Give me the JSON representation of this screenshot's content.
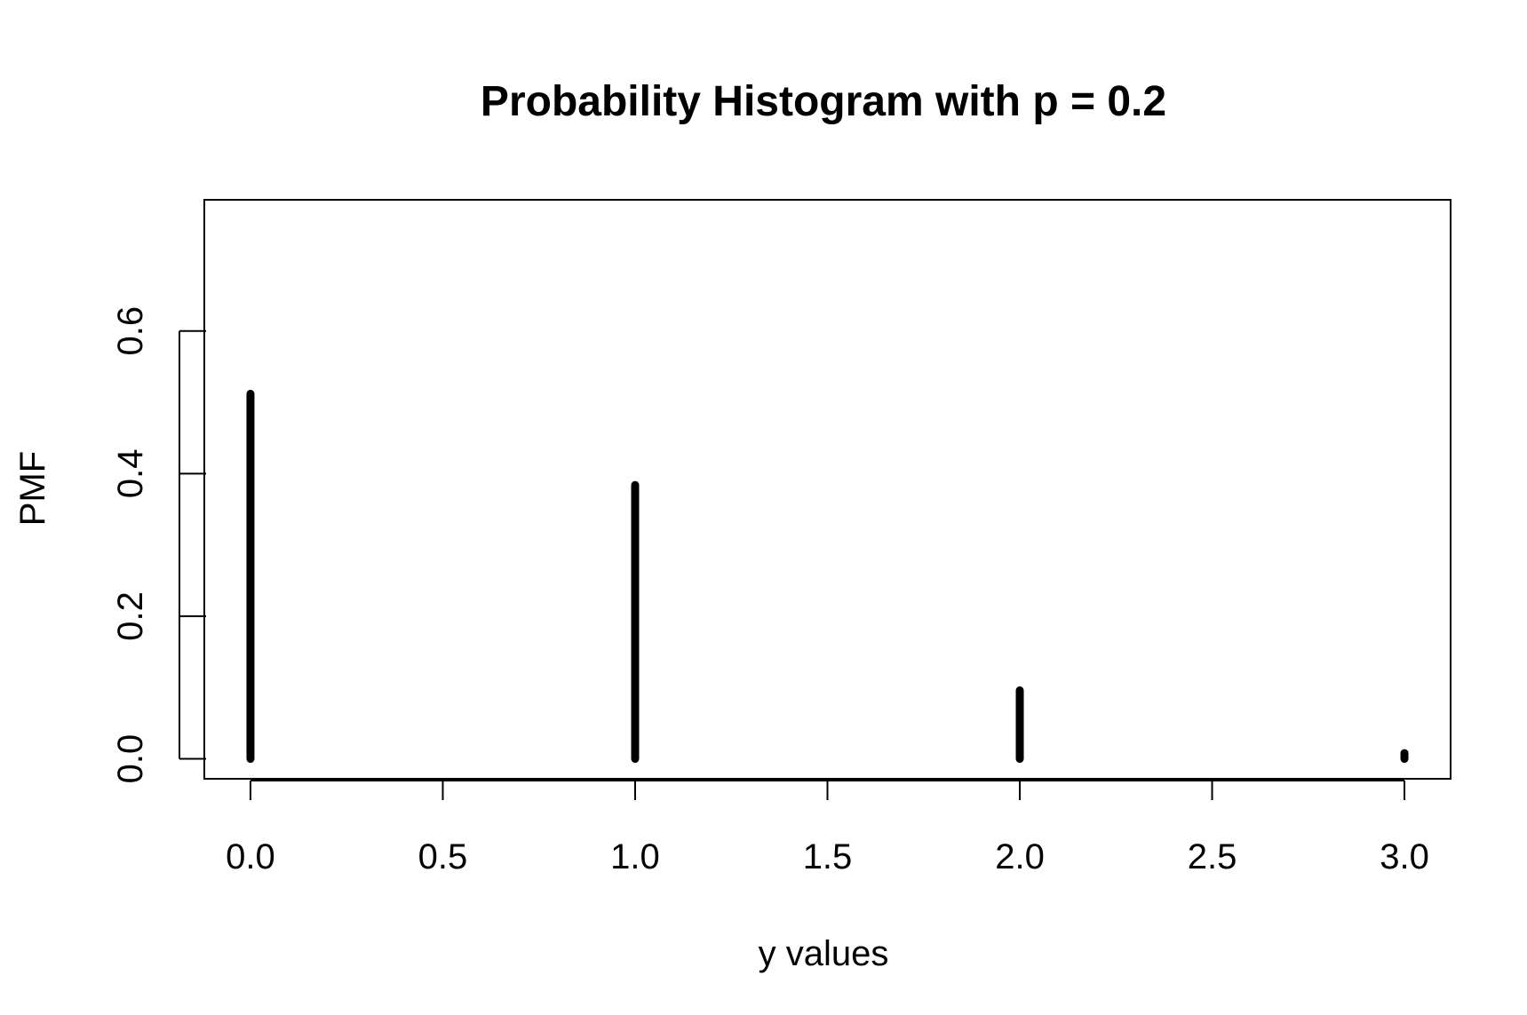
{
  "chart_data": {
    "type": "bar",
    "title": "Probability Histogram with p = 0.2",
    "xlabel": "y values",
    "ylabel": "PMF",
    "x": [
      0,
      1,
      2,
      3
    ],
    "values": [
      0.512,
      0.384,
      0.096,
      0.008
    ],
    "xlim": [
      -0.12,
      3.12
    ],
    "ylim": [
      -0.028,
      0.784
    ],
    "xticks": [
      0,
      0.5,
      1,
      1.5,
      2,
      2.5,
      3
    ],
    "xtick_labels": [
      "0.0",
      "0.5",
      "1.0",
      "1.5",
      "2.0",
      "2.5",
      "3.0"
    ],
    "yticks": [
      0,
      0.2,
      0.4,
      0.6
    ],
    "ytick_labels": [
      "0.0",
      "0.2",
      "0.4",
      "0.6"
    ],
    "grid": false,
    "bar_color": "#000000",
    "frame_color": "#000000"
  }
}
